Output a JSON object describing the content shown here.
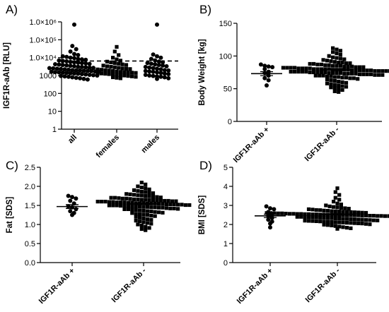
{
  "chart_data": [
    {
      "panel": "A)",
      "type": "scatter",
      "subtype": "dot-column (strip) plot",
      "ylabel": "IGF1R-aAb [RLU]",
      "yscale": "log",
      "ylim": [
        1,
        1000000
      ],
      "yticks": [
        1,
        10,
        100,
        1000,
        10000,
        100000,
        1000000
      ],
      "ytick_labels": [
        "1",
        "10",
        "100",
        "1000",
        "1.0×10⁴",
        "1.0×10⁵",
        "1.0×10⁶"
      ],
      "categories": [
        "all",
        "females",
        "males"
      ],
      "marker_shapes": [
        "circle",
        "square",
        "circle"
      ],
      "threshold": 6500,
      "threshold_style": "dashed",
      "series": [
        {
          "values": [
            700000,
            45000,
            30000,
            22000,
            16000,
            14000,
            12000,
            11000,
            10000,
            9500,
            8500,
            8000,
            7600,
            7000,
            6600,
            6200,
            5800,
            5500,
            5200,
            5000,
            4800,
            4500,
            4300,
            4100,
            3900,
            3700,
            3500,
            3300,
            3100,
            3000,
            2900,
            2800,
            2700,
            2600,
            2500,
            2400,
            2300,
            2200,
            2100,
            2000,
            1950,
            1900,
            1850,
            1800,
            1750,
            1700,
            1650,
            1600,
            1550,
            1500,
            1450,
            1400,
            1350,
            1300,
            1250,
            1200,
            1150,
            1100,
            1050,
            1000,
            950,
            900,
            850,
            800,
            750,
            700,
            650,
            600
          ]
        },
        {
          "values": [
            40000,
            22000,
            14000,
            10000,
            8000,
            6800,
            6000,
            5400,
            5000,
            4600,
            4200,
            3900,
            3600,
            3300,
            3100,
            2900,
            2700,
            2500,
            2400,
            2300,
            2200,
            2100,
            2000,
            1900,
            1800,
            1700,
            1600,
            1550,
            1500,
            1450,
            1400,
            1350,
            1300,
            1250,
            1200,
            1150,
            1100,
            1050,
            1000,
            950,
            900,
            850,
            800,
            750,
            700
          ]
        },
        {
          "values": [
            700000,
            15000,
            12000,
            10000,
            8500,
            7000,
            6000,
            5500,
            5000,
            4600,
            4200,
            3900,
            3600,
            3300,
            3000,
            2800,
            2600,
            2400,
            2200,
            2000,
            1900,
            1800,
            1700,
            1600,
            1500,
            1400,
            1300,
            1200,
            1100,
            1000,
            950,
            900,
            850,
            800,
            700,
            650
          ]
        }
      ]
    },
    {
      "panel": "B)",
      "type": "scatter",
      "subtype": "dot-column plot with mean ± SEM",
      "ylabel": "Body Weight [kg]",
      "ylim": [
        0,
        150
      ],
      "yticks": [
        0,
        50,
        100,
        150
      ],
      "categories": [
        "IGF1R-aAb +",
        "IGF1R-aAb -"
      ],
      "marker_shapes": [
        "circle",
        "square"
      ],
      "series": [
        {
          "values": [
            87,
            85,
            84,
            83,
            80,
            76,
            74,
            70,
            66,
            63,
            55
          ],
          "mean": 73,
          "sem": 3
        },
        {
          "values": [
            112,
            110,
            108,
            106,
            104,
            102,
            100,
            98,
            97,
            96,
            95,
            94,
            93,
            92,
            91,
            90,
            90,
            89,
            89,
            88,
            88,
            87,
            87,
            86,
            86,
            85,
            85,
            85,
            84,
            84,
            84,
            83,
            83,
            83,
            82,
            82,
            82,
            82,
            81,
            81,
            81,
            81,
            80,
            80,
            80,
            80,
            80,
            79,
            79,
            79,
            79,
            79,
            78,
            78,
            78,
            78,
            78,
            78,
            77,
            77,
            77,
            77,
            77,
            76,
            76,
            76,
            76,
            76,
            75,
            75,
            75,
            75,
            75,
            74,
            74,
            74,
            74,
            73,
            73,
            73,
            73,
            72,
            72,
            72,
            72,
            71,
            71,
            71,
            70,
            70,
            70,
            69,
            69,
            68,
            68,
            67,
            67,
            66,
            66,
            65,
            64,
            63,
            62,
            61,
            60,
            59,
            58,
            57,
            56,
            55,
            54,
            53,
            52,
            51,
            50,
            48,
            46,
            45
          ],
          "mean": 79,
          "sem": 1.2
        }
      ]
    },
    {
      "panel": "C)",
      "type": "scatter",
      "subtype": "dot-column plot with mean ± SEM",
      "ylabel": "Fat [SDS]",
      "ylim": [
        0,
        2.5
      ],
      "yticks": [
        0.0,
        0.5,
        1.0,
        1.5,
        2.0,
        2.5
      ],
      "ytick_labels": [
        "0.0",
        "0.5",
        "1.0",
        "1.5",
        "2.0",
        "2.5"
      ],
      "categories": [
        "IGF1R-aAb +",
        "IGF1R-aAb -"
      ],
      "marker_shapes": [
        "circle",
        "square"
      ],
      "series": [
        {
          "values": [
            1.75,
            1.72,
            1.68,
            1.62,
            1.55,
            1.48,
            1.45,
            1.4,
            1.35,
            1.3,
            1.25
          ],
          "mean": 1.47,
          "sem": 0.05
        },
        {
          "values": [
            2.1,
            2.05,
            2.0,
            1.97,
            1.95,
            1.92,
            1.9,
            1.88,
            1.86,
            1.85,
            1.83,
            1.82,
            1.8,
            1.79,
            1.78,
            1.77,
            1.76,
            1.75,
            1.74,
            1.73,
            1.72,
            1.71,
            1.7,
            1.7,
            1.69,
            1.68,
            1.68,
            1.67,
            1.66,
            1.66,
            1.65,
            1.65,
            1.64,
            1.64,
            1.63,
            1.63,
            1.62,
            1.62,
            1.61,
            1.61,
            1.6,
            1.6,
            1.6,
            1.59,
            1.59,
            1.58,
            1.58,
            1.58,
            1.57,
            1.57,
            1.56,
            1.56,
            1.56,
            1.55,
            1.55,
            1.55,
            1.54,
            1.54,
            1.53,
            1.53,
            1.53,
            1.52,
            1.52,
            1.51,
            1.51,
            1.5,
            1.5,
            1.5,
            1.49,
            1.49,
            1.48,
            1.48,
            1.47,
            1.47,
            1.46,
            1.46,
            1.45,
            1.45,
            1.44,
            1.44,
            1.43,
            1.42,
            1.42,
            1.41,
            1.4,
            1.4,
            1.39,
            1.38,
            1.37,
            1.36,
            1.35,
            1.34,
            1.33,
            1.32,
            1.31,
            1.3,
            1.28,
            1.27,
            1.26,
            1.25,
            1.23,
            1.22,
            1.2,
            1.18,
            1.16,
            1.14,
            1.12,
            1.1,
            1.08,
            1.06,
            1.04,
            1.02,
            1.0,
            0.97,
            0.94,
            0.91,
            0.88,
            0.85
          ],
          "mean": 1.54,
          "sem": 0.02
        }
      ]
    },
    {
      "panel": "D)",
      "type": "scatter",
      "subtype": "dot-column plot with mean ± SEM",
      "ylabel": "BMI [SDS]",
      "ylim": [
        0,
        5
      ],
      "yticks": [
        0,
        1,
        2,
        3,
        4,
        5
      ],
      "categories": [
        "IGF1R-aAb +",
        "IGF1R-aAb -"
      ],
      "marker_shapes": [
        "circle",
        "square"
      ],
      "series": [
        {
          "values": [
            2.95,
            2.85,
            2.8,
            2.65,
            2.55,
            2.45,
            2.35,
            2.25,
            2.15,
            2.05,
            1.85
          ],
          "mean": 2.45,
          "sem": 0.09
        },
        {
          "values": [
            3.9,
            3.7,
            3.55,
            3.4,
            3.3,
            3.2,
            3.1,
            3.05,
            3.0,
            2.95,
            2.92,
            2.9,
            2.87,
            2.85,
            2.83,
            2.8,
            2.78,
            2.76,
            2.75,
            2.73,
            2.72,
            2.7,
            2.69,
            2.68,
            2.67,
            2.66,
            2.65,
            2.64,
            2.63,
            2.62,
            2.61,
            2.6,
            2.6,
            2.59,
            2.58,
            2.58,
            2.57,
            2.56,
            2.56,
            2.55,
            2.55,
            2.54,
            2.54,
            2.53,
            2.53,
            2.52,
            2.52,
            2.51,
            2.51,
            2.5,
            2.5,
            2.5,
            2.49,
            2.49,
            2.48,
            2.48,
            2.47,
            2.47,
            2.46,
            2.46,
            2.45,
            2.45,
            2.44,
            2.44,
            2.43,
            2.43,
            2.42,
            2.42,
            2.41,
            2.4,
            2.4,
            2.39,
            2.38,
            2.38,
            2.37,
            2.36,
            2.35,
            2.34,
            2.33,
            2.32,
            2.31,
            2.3,
            2.29,
            2.28,
            2.27,
            2.26,
            2.25,
            2.24,
            2.23,
            2.22,
            2.21,
            2.2,
            2.19,
            2.18,
            2.17,
            2.16,
            2.15,
            2.14,
            2.13,
            2.12,
            2.11,
            2.1,
            2.09,
            2.08,
            2.07,
            2.06,
            2.05,
            2.03,
            2.01,
            1.99,
            1.97,
            1.95,
            1.92,
            1.89,
            1.86,
            1.83,
            1.8,
            1.77
          ],
          "mean": 2.53,
          "sem": 0.03
        }
      ]
    }
  ]
}
